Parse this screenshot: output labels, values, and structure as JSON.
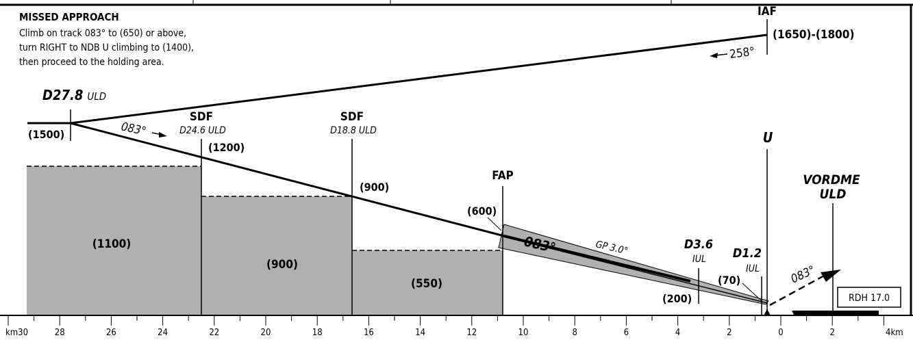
{
  "missed_approach": {
    "title": "MISSED APPROACH",
    "lines": [
      "Climb on track 083° to (650) or above,",
      "turn RIGHT to NDB U climbing to (1400),",
      "then proceed to the holding area."
    ]
  },
  "fixes": {
    "iaf": {
      "name": "IAF",
      "altitude": "(1650)-(1800)",
      "track": "258°"
    },
    "d278": {
      "name": "D27.8",
      "source": "ULD",
      "altitude": "(1500)",
      "track": "083°"
    },
    "sdf1": {
      "name": "SDF",
      "dme": "D24.6 ULD",
      "altitude": "(1200)"
    },
    "sdf2": {
      "name": "SDF",
      "dme": "D18.8 ULD",
      "altitude": "(900)"
    },
    "fap": {
      "name": "FAP",
      "altitude": "(600)",
      "track": "083°",
      "glidepath": "GP 3.0°"
    },
    "d36": {
      "name": "D3.6",
      "source": "IUL",
      "altitude": "(200)"
    },
    "d12": {
      "name": "D1.2",
      "source": "IUL",
      "altitude": "(70)"
    },
    "ndb": {
      "name": "U"
    },
    "vordme": {
      "name_line1": "VORDME",
      "name_line2": "ULD"
    },
    "missed_track": "083°"
  },
  "msa_blocks": [
    {
      "label": "(1100)"
    },
    {
      "label": "(900)"
    },
    {
      "label": "(550)"
    }
  ],
  "rdh": "RDH 17.0",
  "scale": {
    "unit_left": "km30",
    "unit_right": "4km",
    "ticks": [
      "28",
      "26",
      "24",
      "22",
      "20",
      "18",
      "16",
      "14",
      "12",
      "10",
      "8",
      "6",
      "4",
      "2",
      "0",
      "2"
    ]
  }
}
